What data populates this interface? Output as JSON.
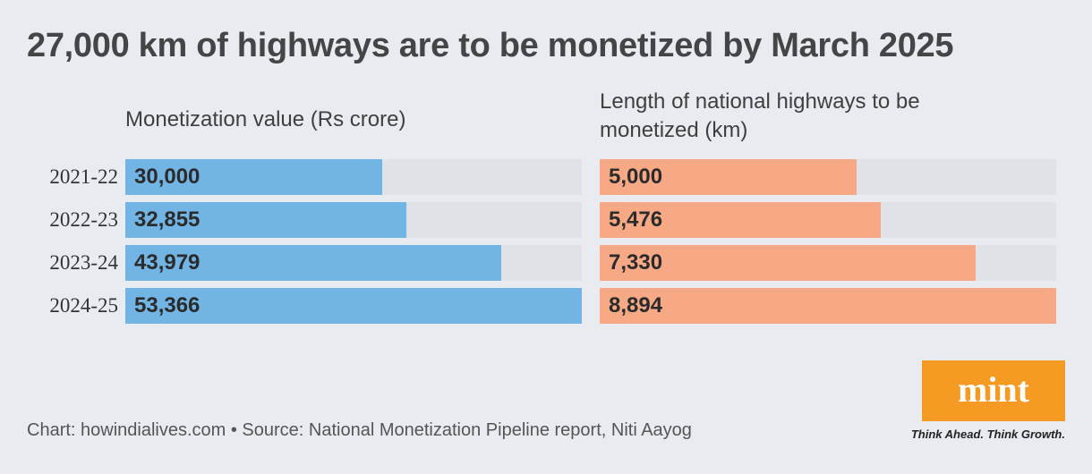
{
  "title": "27,000 km of highways are to be monetized by March 2025",
  "colors": {
    "blue": "#72b4e3",
    "orange": "#f7a884",
    "track": "#dfe2e7"
  },
  "chart_data": [
    {
      "type": "bar",
      "orientation": "horizontal",
      "title": "Monetization value (Rs crore)",
      "categories": [
        "2021-22",
        "2022-23",
        "2023-24",
        "2024-25"
      ],
      "values": [
        30000,
        32855,
        43979,
        53366
      ],
      "value_labels": [
        "30,000",
        "32,855",
        "43,979",
        "53,366"
      ],
      "xlim": [
        0,
        53366
      ]
    },
    {
      "type": "bar",
      "orientation": "horizontal",
      "title": "Length of national highways to be monetized (km)",
      "categories": [
        "2021-22",
        "2022-23",
        "2023-24",
        "2024-25"
      ],
      "values": [
        5000,
        5476,
        7330,
        8894
      ],
      "value_labels": [
        "5,000",
        "5,476",
        "7,330",
        "8,894"
      ],
      "xlim": [
        0,
        8894
      ]
    }
  ],
  "footer": "Chart: howindialives.com • Source: National Monetization Pipeline report, Niti Aayog",
  "logo": {
    "text": "mint",
    "tagline": "Think Ahead. Think Growth."
  }
}
